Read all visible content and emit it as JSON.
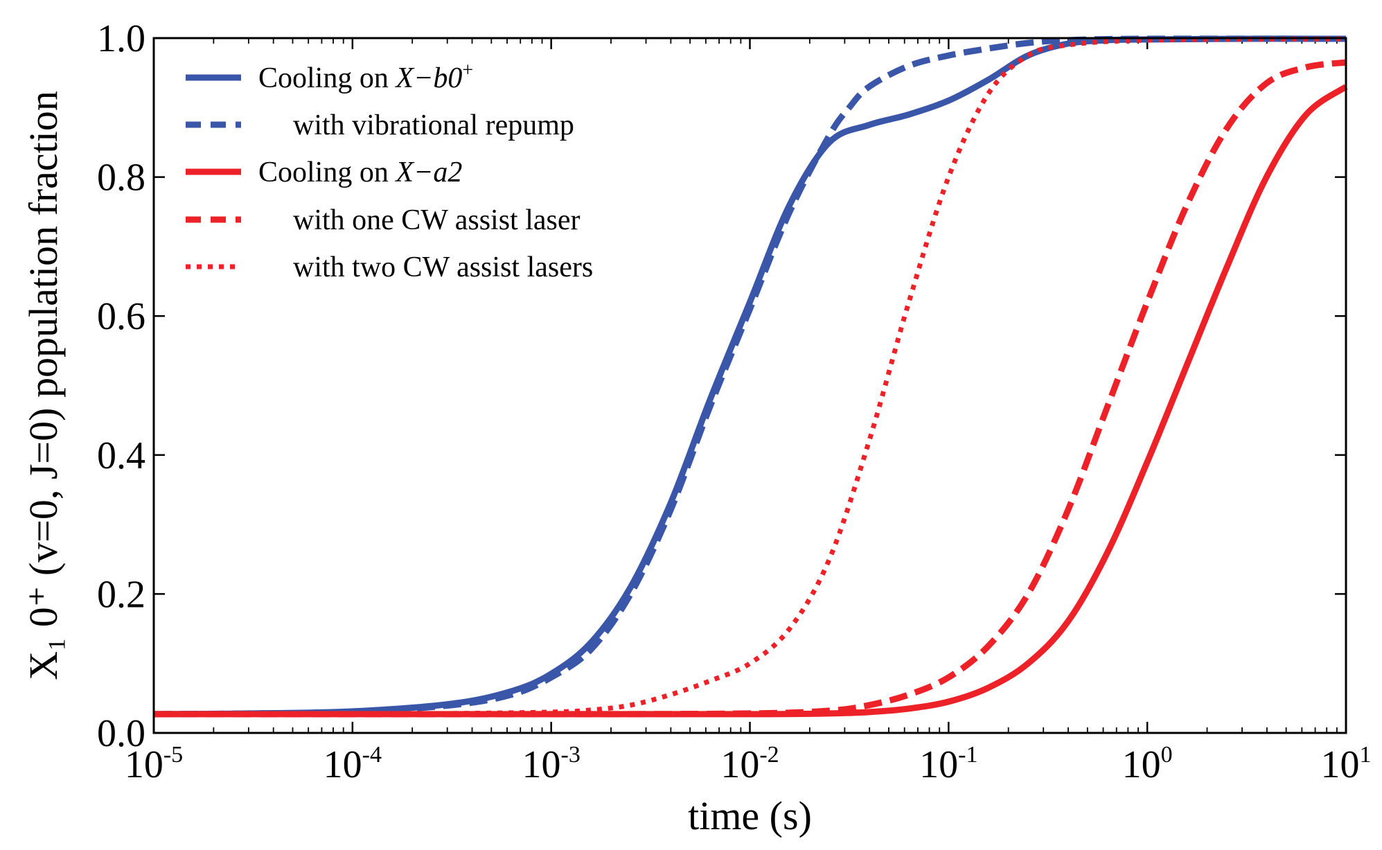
{
  "chart_data": {
    "type": "line",
    "title": "",
    "xlabel": "time (s)",
    "ylabel": "X₁ 0⁺ (v=0, J=0) population fraction",
    "xscale": "log",
    "xlim": [
      1e-05,
      10
    ],
    "ylim": [
      0.0,
      1.0
    ],
    "grid": false,
    "legend_position": "top-left",
    "x_ticks": [
      {
        "value": 1e-05,
        "base": "10",
        "exp": "-5"
      },
      {
        "value": 0.0001,
        "base": "10",
        "exp": "-4"
      },
      {
        "value": 0.001,
        "base": "10",
        "exp": "-3"
      },
      {
        "value": 0.01,
        "base": "10",
        "exp": "-2"
      },
      {
        "value": 0.1,
        "base": "10",
        "exp": "-1"
      },
      {
        "value": 1,
        "base": "10",
        "exp": "0"
      },
      {
        "value": 10,
        "base": "10",
        "exp": "1"
      }
    ],
    "y_ticks": [
      {
        "value": 0.0,
        "label": "0.0"
      },
      {
        "value": 0.2,
        "label": "0.2"
      },
      {
        "value": 0.4,
        "label": "0.4"
      },
      {
        "value": 0.6,
        "label": "0.6"
      },
      {
        "value": 0.8,
        "label": "0.8"
      },
      {
        "value": 1.0,
        "label": "1.0"
      }
    ],
    "series": [
      {
        "name": "Cooling on X−b0⁺",
        "legend_main": "Cooling on ",
        "legend_math": "X−b0",
        "legend_sup": "+",
        "color": "#3a56a8",
        "style": "solid",
        "points": [
          [
            -5,
            0.027
          ],
          [
            -4.5,
            0.028
          ],
          [
            -4,
            0.031
          ],
          [
            -3.5,
            0.042
          ],
          [
            -3.2,
            0.06
          ],
          [
            -3,
            0.085
          ],
          [
            -2.8,
            0.13
          ],
          [
            -2.6,
            0.21
          ],
          [
            -2.4,
            0.33
          ],
          [
            -2.2,
            0.48
          ],
          [
            -2,
            0.62
          ],
          [
            -1.8,
            0.76
          ],
          [
            -1.6,
            0.85
          ],
          [
            -1.4,
            0.875
          ],
          [
            -1.2,
            0.89
          ],
          [
            -1,
            0.91
          ],
          [
            -0.8,
            0.94
          ],
          [
            -0.6,
            0.975
          ],
          [
            -0.4,
            0.992
          ],
          [
            -0.2,
            0.997
          ],
          [
            0,
            0.998
          ],
          [
            0.5,
            0.999
          ],
          [
            1,
            0.999
          ]
        ]
      },
      {
        "name": "with vibrational repump",
        "legend_main": "with vibrational repump",
        "color": "#3a56a8",
        "style": "dashed",
        "points": [
          [
            -5,
            0.027
          ],
          [
            -4.5,
            0.028
          ],
          [
            -4,
            0.03
          ],
          [
            -3.5,
            0.04
          ],
          [
            -3.2,
            0.055
          ],
          [
            -3,
            0.08
          ],
          [
            -2.8,
            0.12
          ],
          [
            -2.6,
            0.2
          ],
          [
            -2.4,
            0.32
          ],
          [
            -2.2,
            0.47
          ],
          [
            -2,
            0.61
          ],
          [
            -1.8,
            0.75
          ],
          [
            -1.6,
            0.86
          ],
          [
            -1.5,
            0.9
          ],
          [
            -1.4,
            0.93
          ],
          [
            -1.2,
            0.96
          ],
          [
            -1,
            0.975
          ],
          [
            -0.8,
            0.985
          ],
          [
            -0.6,
            0.993
          ],
          [
            -0.4,
            0.997
          ],
          [
            0,
            0.999
          ],
          [
            1,
            0.999
          ]
        ]
      },
      {
        "name": "Cooling on X−a2",
        "legend_main": "Cooling on ",
        "legend_math": "X−a2",
        "legend_sup": "",
        "color": "#ec2228",
        "style": "solid",
        "points": [
          [
            -5,
            0.027
          ],
          [
            -3,
            0.027
          ],
          [
            -2,
            0.027
          ],
          [
            -1.6,
            0.028
          ],
          [
            -1.4,
            0.03
          ],
          [
            -1.2,
            0.035
          ],
          [
            -1,
            0.045
          ],
          [
            -0.8,
            0.065
          ],
          [
            -0.6,
            0.1
          ],
          [
            -0.4,
            0.16
          ],
          [
            -0.2,
            0.26
          ],
          [
            0,
            0.39
          ],
          [
            0.2,
            0.53
          ],
          [
            0.4,
            0.67
          ],
          [
            0.6,
            0.8
          ],
          [
            0.8,
            0.89
          ],
          [
            1,
            0.93
          ]
        ]
      },
      {
        "name": "with one CW assist laser",
        "legend_main": "with one CW assist laser",
        "color": "#ec2228",
        "style": "dashed",
        "points": [
          [
            -5,
            0.027
          ],
          [
            -3,
            0.027
          ],
          [
            -2,
            0.028
          ],
          [
            -1.6,
            0.032
          ],
          [
            -1.4,
            0.04
          ],
          [
            -1.2,
            0.055
          ],
          [
            -1,
            0.08
          ],
          [
            -0.8,
            0.125
          ],
          [
            -0.6,
            0.2
          ],
          [
            -0.4,
            0.32
          ],
          [
            -0.2,
            0.47
          ],
          [
            0,
            0.62
          ],
          [
            0.2,
            0.76
          ],
          [
            0.4,
            0.87
          ],
          [
            0.6,
            0.935
          ],
          [
            0.8,
            0.958
          ],
          [
            1,
            0.965
          ]
        ]
      },
      {
        "name": "with two CW assist lasers",
        "legend_main": "with two CW assist lasers",
        "color": "#ec2228",
        "style": "dotted",
        "points": [
          [
            -5,
            0.027
          ],
          [
            -4,
            0.027
          ],
          [
            -3.5,
            0.028
          ],
          [
            -3,
            0.03
          ],
          [
            -2.8,
            0.033
          ],
          [
            -2.6,
            0.04
          ],
          [
            -2.4,
            0.055
          ],
          [
            -2.2,
            0.075
          ],
          [
            -2,
            0.1
          ],
          [
            -1.8,
            0.15
          ],
          [
            -1.6,
            0.25
          ],
          [
            -1.4,
            0.42
          ],
          [
            -1.2,
            0.62
          ],
          [
            -1,
            0.8
          ],
          [
            -0.8,
            0.92
          ],
          [
            -0.6,
            0.975
          ],
          [
            -0.4,
            0.99
          ],
          [
            0,
            0.997
          ],
          [
            1,
            0.999
          ]
        ]
      }
    ]
  }
}
